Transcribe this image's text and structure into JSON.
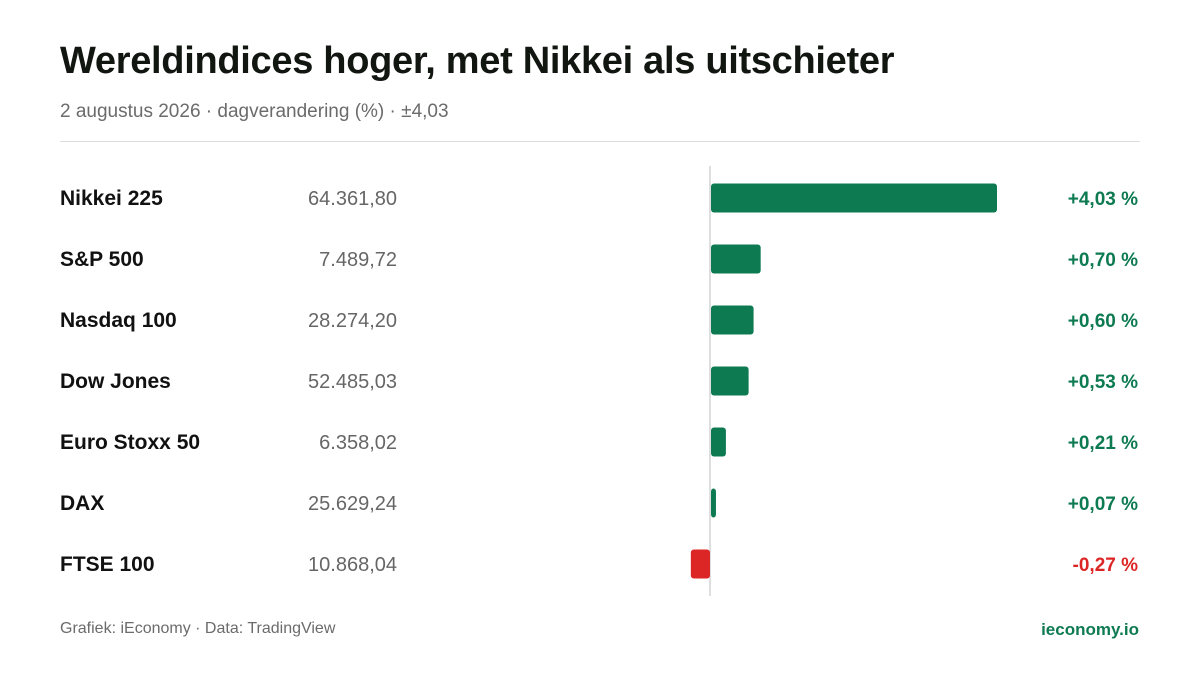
{
  "header": {
    "title": "Wereldindices hoger, met Nikkei als uitschieter",
    "subtitle": "2 augustus 2026 · dagverandering (%) · ±4,03"
  },
  "footer": {
    "source": "Grafiek: iEconomy · Data: TradingView",
    "brand": "ieconomy.io"
  },
  "colors": {
    "positive": "#0e7a52",
    "negative": "#dc2626",
    "axis": "#d4d4d4",
    "value_text": "#666666"
  },
  "chart_data": {
    "type": "bar",
    "orientation": "horizontal",
    "xlim": [
      -4.03,
      4.03
    ],
    "grid": false,
    "categories": [
      "Nikkei 225",
      "S&P 500",
      "Nasdaq 100",
      "Dow Jones",
      "Euro Stoxx 50",
      "DAX",
      "FTSE 100"
    ],
    "levels": [
      "64.361,80",
      "7.489,72",
      "28.274,20",
      "52.485,03",
      "6.358,02",
      "25.629,24",
      "10.868,04"
    ],
    "values": [
      4.03,
      0.7,
      0.6,
      0.53,
      0.21,
      0.07,
      -0.27
    ],
    "value_labels": [
      "+4,03 %",
      "+0,70 %",
      "+0,60 %",
      "+0,53 %",
      "+0,21 %",
      "+0,07 %",
      "-0,27 %"
    ]
  }
}
